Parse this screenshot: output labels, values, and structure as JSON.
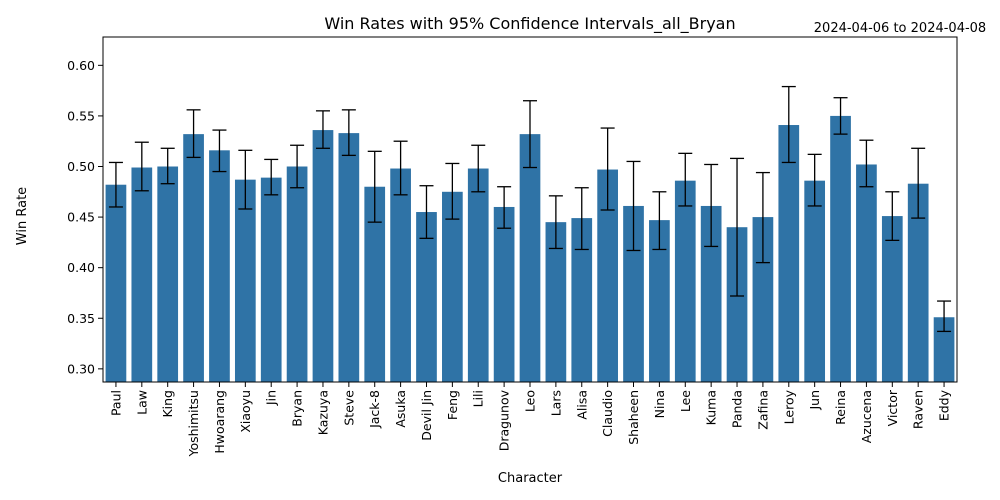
{
  "chart_data": {
    "type": "bar",
    "title": "Win Rates with 95% Confidence Intervals_all_Bryan",
    "date_range": "2024-04-06 to 2024-04-08",
    "xlabel": "Character",
    "ylabel": "Win Rate",
    "ylim": [
      0.287,
      0.628
    ],
    "yticks": [
      "0.30",
      "0.35",
      "0.40",
      "0.45",
      "0.50",
      "0.55",
      "0.60"
    ],
    "ytick_values": [
      0.3,
      0.35,
      0.4,
      0.45,
      0.5,
      0.55,
      0.6
    ],
    "bar_color": "#2f73a6",
    "categories": [
      "Paul",
      "Law",
      "King",
      "Yoshimitsu",
      "Hwoarang",
      "Xiaoyu",
      "Jin",
      "Bryan",
      "Kazuya",
      "Steve",
      "Jack-8",
      "Asuka",
      "Devil Jin",
      "Feng",
      "Lili",
      "Dragunov",
      "Leo",
      "Lars",
      "Alisa",
      "Claudio",
      "Shaheen",
      "Nina",
      "Lee",
      "Kuma",
      "Panda",
      "Zafina",
      "Leroy",
      "Jun",
      "Reina",
      "Azucena",
      "Victor",
      "Raven",
      "Eddy"
    ],
    "values": [
      0.482,
      0.499,
      0.5,
      0.532,
      0.516,
      0.487,
      0.489,
      0.5,
      0.536,
      0.533,
      0.48,
      0.498,
      0.455,
      0.475,
      0.498,
      0.46,
      0.532,
      0.445,
      0.449,
      0.497,
      0.461,
      0.447,
      0.486,
      0.461,
      0.44,
      0.45,
      0.541,
      0.486,
      0.55,
      0.502,
      0.451,
      0.483,
      0.351
    ],
    "ci_lower": [
      0.46,
      0.476,
      0.483,
      0.509,
      0.495,
      0.458,
      0.472,
      0.479,
      0.518,
      0.511,
      0.445,
      0.472,
      0.429,
      0.448,
      0.475,
      0.439,
      0.499,
      0.419,
      0.418,
      0.457,
      0.417,
      0.418,
      0.461,
      0.421,
      0.372,
      0.405,
      0.504,
      0.461,
      0.532,
      0.48,
      0.427,
      0.449,
      0.337
    ],
    "ci_upper": [
      0.504,
      0.524,
      0.518,
      0.556,
      0.536,
      0.516,
      0.507,
      0.521,
      0.555,
      0.556,
      0.515,
      0.525,
      0.481,
      0.503,
      0.521,
      0.48,
      0.565,
      0.471,
      0.479,
      0.538,
      0.505,
      0.475,
      0.513,
      0.502,
      0.508,
      0.494,
      0.579,
      0.512,
      0.568,
      0.526,
      0.475,
      0.518,
      0.367
    ]
  }
}
